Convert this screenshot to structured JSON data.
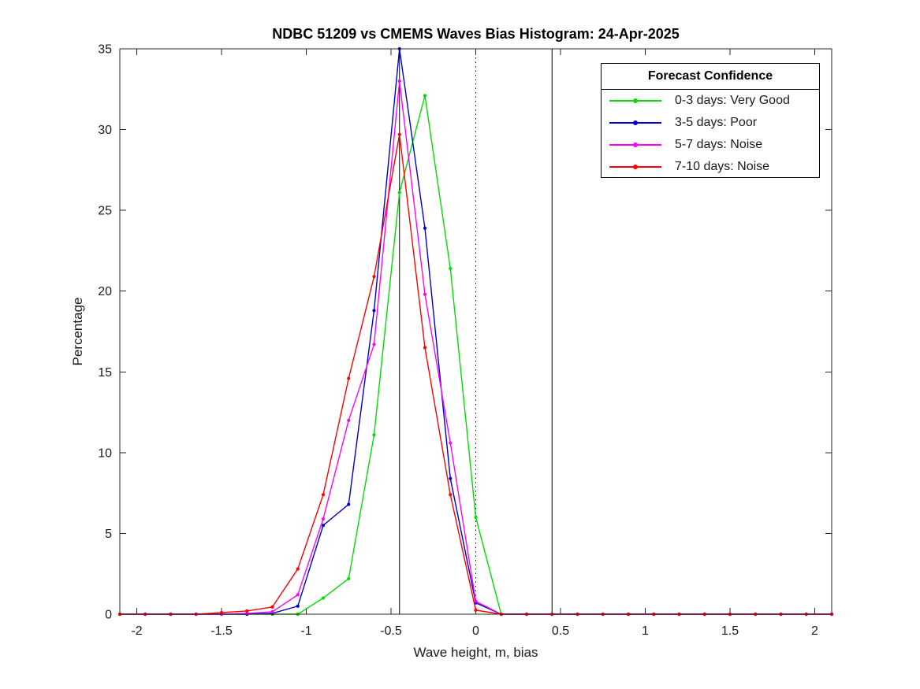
{
  "legend": {
    "title": "Forecast Confidence"
  },
  "chart_data": {
    "type": "line",
    "title": "NDBC 51209 vs CMEMS Waves Bias Histogram: 24-Apr-2025",
    "xlabel": "Wave height, m, bias",
    "ylabel": "Percentage",
    "xlim": [
      -2.1,
      2.1
    ],
    "ylim": [
      0,
      35
    ],
    "xticks": [
      -2,
      -1.5,
      -1,
      -0.5,
      0,
      0.5,
      1,
      1.5,
      2
    ],
    "xtick_labels": [
      "-2",
      "-1.5",
      "-1",
      "-0.5",
      "0",
      "0.5",
      "1",
      "1.5",
      "2"
    ],
    "yticks": [
      0,
      5,
      10,
      15,
      20,
      25,
      30,
      35
    ],
    "grid": false,
    "legend_position": "top-right",
    "marker": "dot",
    "x": [
      -2.1,
      -1.95,
      -1.8,
      -1.65,
      -1.5,
      -1.35,
      -1.2,
      -1.05,
      -0.9,
      -0.75,
      -0.6,
      -0.45,
      -0.3,
      -0.15,
      0,
      0.15,
      0.3,
      0.45,
      0.6,
      0.75,
      0.9,
      1.05,
      1.2,
      1.35,
      1.5,
      1.65,
      1.8,
      1.95,
      2.1
    ],
    "series": [
      {
        "name": "0-3 days: Very Good",
        "color": "#00dd00",
        "values": [
          0,
          0,
          0,
          0,
          0,
          0,
          0,
          0,
          1.0,
          2.2,
          11.1,
          26.1,
          32.1,
          21.4,
          6.0,
          0,
          0,
          0,
          0,
          0,
          0,
          0,
          0,
          0,
          0,
          0,
          0,
          0,
          0
        ]
      },
      {
        "name": "3-5 days: Poor",
        "color": "#0000cc",
        "values": [
          0,
          0,
          0,
          0,
          0,
          0,
          0.05,
          0.5,
          5.5,
          6.8,
          18.8,
          35.0,
          23.9,
          8.4,
          0.7,
          0,
          0,
          0,
          0,
          0,
          0,
          0,
          0,
          0,
          0,
          0,
          0,
          0,
          0
        ]
      },
      {
        "name": "5-7 days: Noise",
        "color": "#ff00ff",
        "values": [
          0,
          0,
          0,
          0,
          0,
          0.05,
          0.15,
          1.2,
          5.9,
          12.0,
          16.7,
          33.0,
          19.8,
          10.6,
          0.8,
          0,
          0,
          0,
          0,
          0,
          0,
          0,
          0,
          0,
          0,
          0,
          0,
          0,
          0
        ]
      },
      {
        "name": "7-10 days: Noise",
        "color": "#ff0000",
        "values": [
          0,
          0,
          0,
          0,
          0.1,
          0.2,
          0.45,
          2.8,
          7.4,
          14.6,
          20.9,
          29.7,
          16.5,
          7.4,
          0.25,
          0,
          0,
          0,
          0,
          0,
          0,
          0,
          0,
          0,
          0,
          0,
          0,
          0,
          0
        ]
      }
    ],
    "reference_lines": [
      {
        "x": -0.45,
        "style": "solid",
        "color": "#000000"
      },
      {
        "x": 0,
        "style": "dotted",
        "color": "#000000"
      },
      {
        "x": 0.45,
        "style": "solid",
        "color": "#000000"
      }
    ]
  }
}
